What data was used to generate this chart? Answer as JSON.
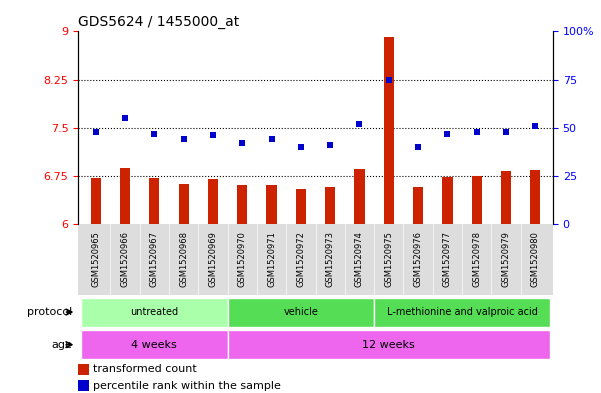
{
  "title": "GDS5624 / 1455000_at",
  "samples": [
    "GSM1520965",
    "GSM1520966",
    "GSM1520967",
    "GSM1520968",
    "GSM1520969",
    "GSM1520970",
    "GSM1520971",
    "GSM1520972",
    "GSM1520973",
    "GSM1520974",
    "GSM1520975",
    "GSM1520976",
    "GSM1520977",
    "GSM1520978",
    "GSM1520979",
    "GSM1520980"
  ],
  "bar_values": [
    6.72,
    6.88,
    6.72,
    6.63,
    6.7,
    6.6,
    6.6,
    6.55,
    6.58,
    6.85,
    8.92,
    6.57,
    6.73,
    6.75,
    6.82,
    6.84
  ],
  "dot_values": [
    48,
    55,
    47,
    44,
    46,
    42,
    44,
    40,
    41,
    52,
    75,
    40,
    47,
    48,
    48,
    51
  ],
  "ylim_left": [
    6,
    9
  ],
  "ylim_right": [
    0,
    100
  ],
  "yticks_left": [
    6,
    6.75,
    7.5,
    8.25,
    9
  ],
  "ytick_labels_left": [
    "6",
    "6.75",
    "7.5",
    "8.25",
    "9"
  ],
  "yticks_right": [
    0,
    25,
    50,
    75,
    100
  ],
  "ytick_labels_right": [
    "0",
    "25",
    "50",
    "75",
    "100%"
  ],
  "bar_color": "#CC2200",
  "dot_color": "#0000CC",
  "hline_values": [
    6.75,
    7.5,
    8.25
  ],
  "bar_base": 6.0,
  "bar_width": 0.35,
  "proto_groups": [
    {
      "label": "untreated",
      "start": 0,
      "end": 4,
      "color": "#AAFFAA"
    },
    {
      "label": "vehicle",
      "start": 5,
      "end": 9,
      "color": "#55DD55"
    },
    {
      "label": "L-methionine and valproic acid",
      "start": 10,
      "end": 15,
      "color": "#55DD55"
    }
  ],
  "age_groups": [
    {
      "label": "4 weeks",
      "start": 0,
      "end": 4,
      "color": "#EE66EE"
    },
    {
      "label": "12 weeks",
      "start": 5,
      "end": 15,
      "color": "#EE66EE"
    }
  ],
  "legend_items": [
    {
      "label": "transformed count",
      "color": "#CC2200"
    },
    {
      "label": "percentile rank within the sample",
      "color": "#0000CC"
    }
  ]
}
